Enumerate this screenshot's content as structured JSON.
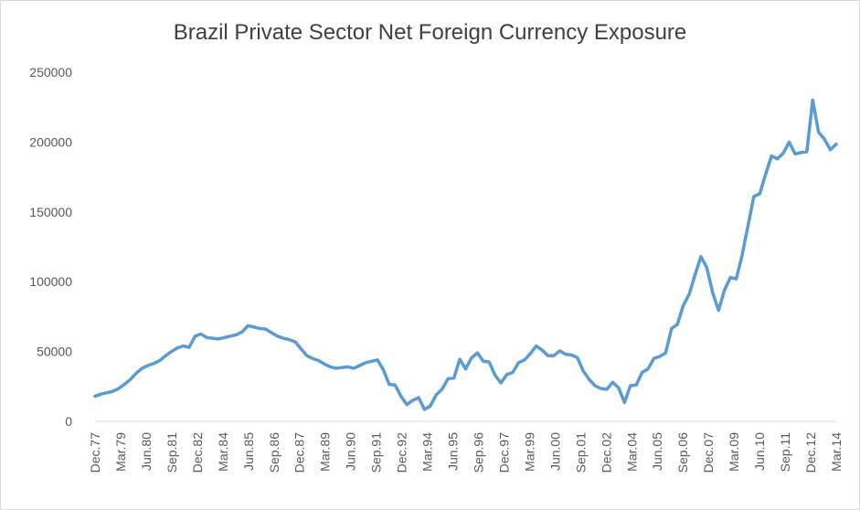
{
  "chart_data": {
    "type": "line",
    "title": "Brazil Private Sector Net Foreign Currency Exposure",
    "xlabel": "",
    "ylabel": "",
    "ylim": [
      0,
      250000
    ],
    "yticks": [
      0,
      50000,
      100000,
      150000,
      200000,
      250000
    ],
    "ytick_labels": [
      "0",
      "50000",
      "100000",
      "150000",
      "200000",
      "250000"
    ],
    "xtick_labels": [
      "Dec.77",
      "Mar.79",
      "Jun.80",
      "Sep.81",
      "Dec.82",
      "Mar.84",
      "Jun.85",
      "Sep.86",
      "Dec.87",
      "Mar.89",
      "Jun.90",
      "Sep.91",
      "Dec.92",
      "Mar.94",
      "Jun.95",
      "Sep.96",
      "Dec.97",
      "Mar.99",
      "Jun.00",
      "Sep.01",
      "Dec.02",
      "Mar.04",
      "Jun.05",
      "Sep.06",
      "Dec.07",
      "Mar.09",
      "Jun.10",
      "Sep.11",
      "Dec.12",
      "Mar.14"
    ],
    "grid": false,
    "legend": "none",
    "line_color": "#5b9bd5",
    "series": [
      {
        "values": [
          18000,
          19500,
          20500,
          21500,
          23500,
          26500,
          30000,
          34500,
          38000,
          40000,
          41500,
          43500,
          47000,
          50000,
          52500,
          54000,
          53000,
          61000,
          62500,
          60000,
          59500,
          59000,
          60000,
          61000,
          62000,
          64000,
          68500,
          67500,
          66500,
          66000,
          63500,
          61000,
          59500,
          58500,
          57000,
          52000,
          47000,
          45000,
          43500,
          41000,
          39000,
          38000,
          38500,
          39000,
          38000,
          40000,
          42000,
          43000,
          44000,
          37000,
          26500,
          26000,
          18000,
          12000,
          15000,
          17000,
          8500,
          11000,
          19000,
          23000,
          30500,
          31000,
          44500,
          37500,
          45500,
          49000,
          43000,
          42500,
          33000,
          27500,
          33500,
          35000,
          42000,
          44000,
          48500,
          54000,
          51000,
          47000,
          47000,
          50500,
          48000,
          47500,
          45500,
          36000,
          30000,
          25500,
          23500,
          23000,
          28000,
          24000,
          13500,
          25500,
          26000,
          35000,
          37500,
          45000,
          46500,
          49000,
          66500,
          69500,
          83000,
          91000,
          105000,
          118000,
          110000,
          92000,
          79500,
          94000,
          103000,
          102000,
          119000,
          140000,
          161000,
          163000,
          177000,
          190000,
          188000,
          192000,
          200000,
          191500,
          192500,
          193000,
          230000,
          207000,
          202000,
          194500,
          198500
        ]
      }
    ]
  }
}
